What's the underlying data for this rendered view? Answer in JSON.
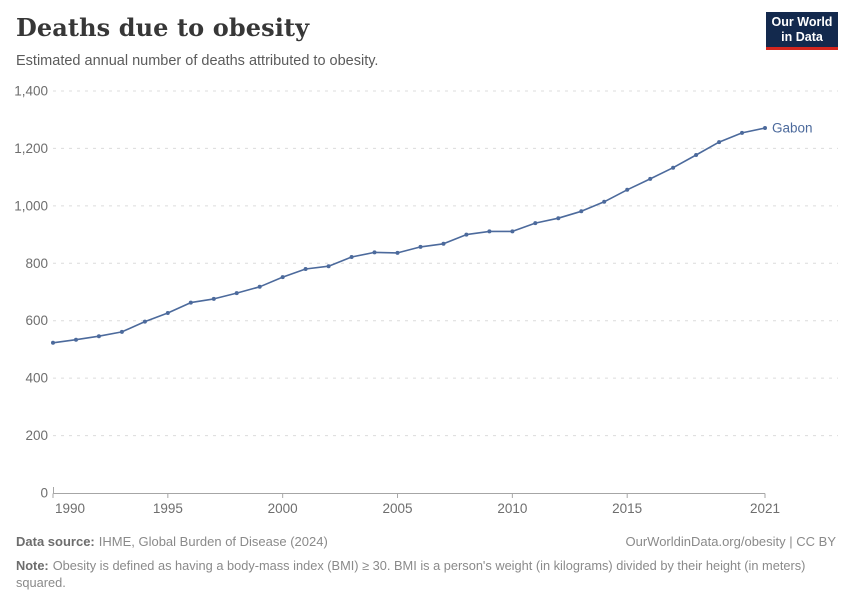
{
  "header": {
    "title": "Deaths due to obesity",
    "subtitle": "Estimated annual number of deaths attributed to obesity.",
    "logo": {
      "line1": "Our World",
      "line2": "in Data"
    }
  },
  "chart_data": {
    "type": "line",
    "title": "Deaths due to obesity",
    "subtitle": "Estimated annual number of deaths attributed to obesity.",
    "xlabel": "",
    "ylabel": "",
    "xlim": [
      1990,
      2021
    ],
    "ylim": [
      0,
      1400
    ],
    "grid": "horizontal-dashed",
    "legend_position": "end-of-line-label",
    "x_ticks": [
      1990,
      1995,
      2000,
      2005,
      2010,
      2015,
      2021
    ],
    "y_ticks": [
      0,
      200,
      400,
      600,
      800,
      1000,
      1200,
      1400
    ],
    "y_tick_labels": [
      "0",
      "200",
      "400",
      "600",
      "800",
      "1,000",
      "1,200",
      "1,400"
    ],
    "series": [
      {
        "name": "Gabon",
        "color": "#4C6A9C",
        "x": [
          1990,
          1991,
          1992,
          1993,
          1994,
          1995,
          1996,
          1997,
          1998,
          1999,
          2000,
          2001,
          2002,
          2003,
          2004,
          2005,
          2006,
          2007,
          2008,
          2009,
          2010,
          2011,
          2012,
          2013,
          2014,
          2015,
          2016,
          2017,
          2018,
          2019,
          2020,
          2021
        ],
        "values": [
          523,
          534,
          546,
          561,
          597,
          627,
          663,
          676,
          696,
          718,
          752,
          780,
          790,
          822,
          838,
          836,
          857,
          868,
          900,
          911,
          911,
          940,
          957,
          981,
          1014,
          1056,
          1094,
          1133,
          1177,
          1222,
          1254,
          1271
        ]
      }
    ]
  },
  "colors": {
    "gridline": "#dcdcdc",
    "axis_line": "#a6a6a6",
    "axis_text": "#6e6e6e",
    "series_blue": "#4C6A9C"
  },
  "footer": {
    "source_label": "Data source:",
    "source_text": "IHME, Global Burden of Disease (2024)",
    "link_text": "OurWorldinData.org/obesity | CC BY",
    "note_label": "Note:",
    "note_text": "Obesity is defined as having a body-mass index (BMI) ≥ 30. BMI is a person's weight (in kilograms) divided by their height (in meters) squared."
  }
}
